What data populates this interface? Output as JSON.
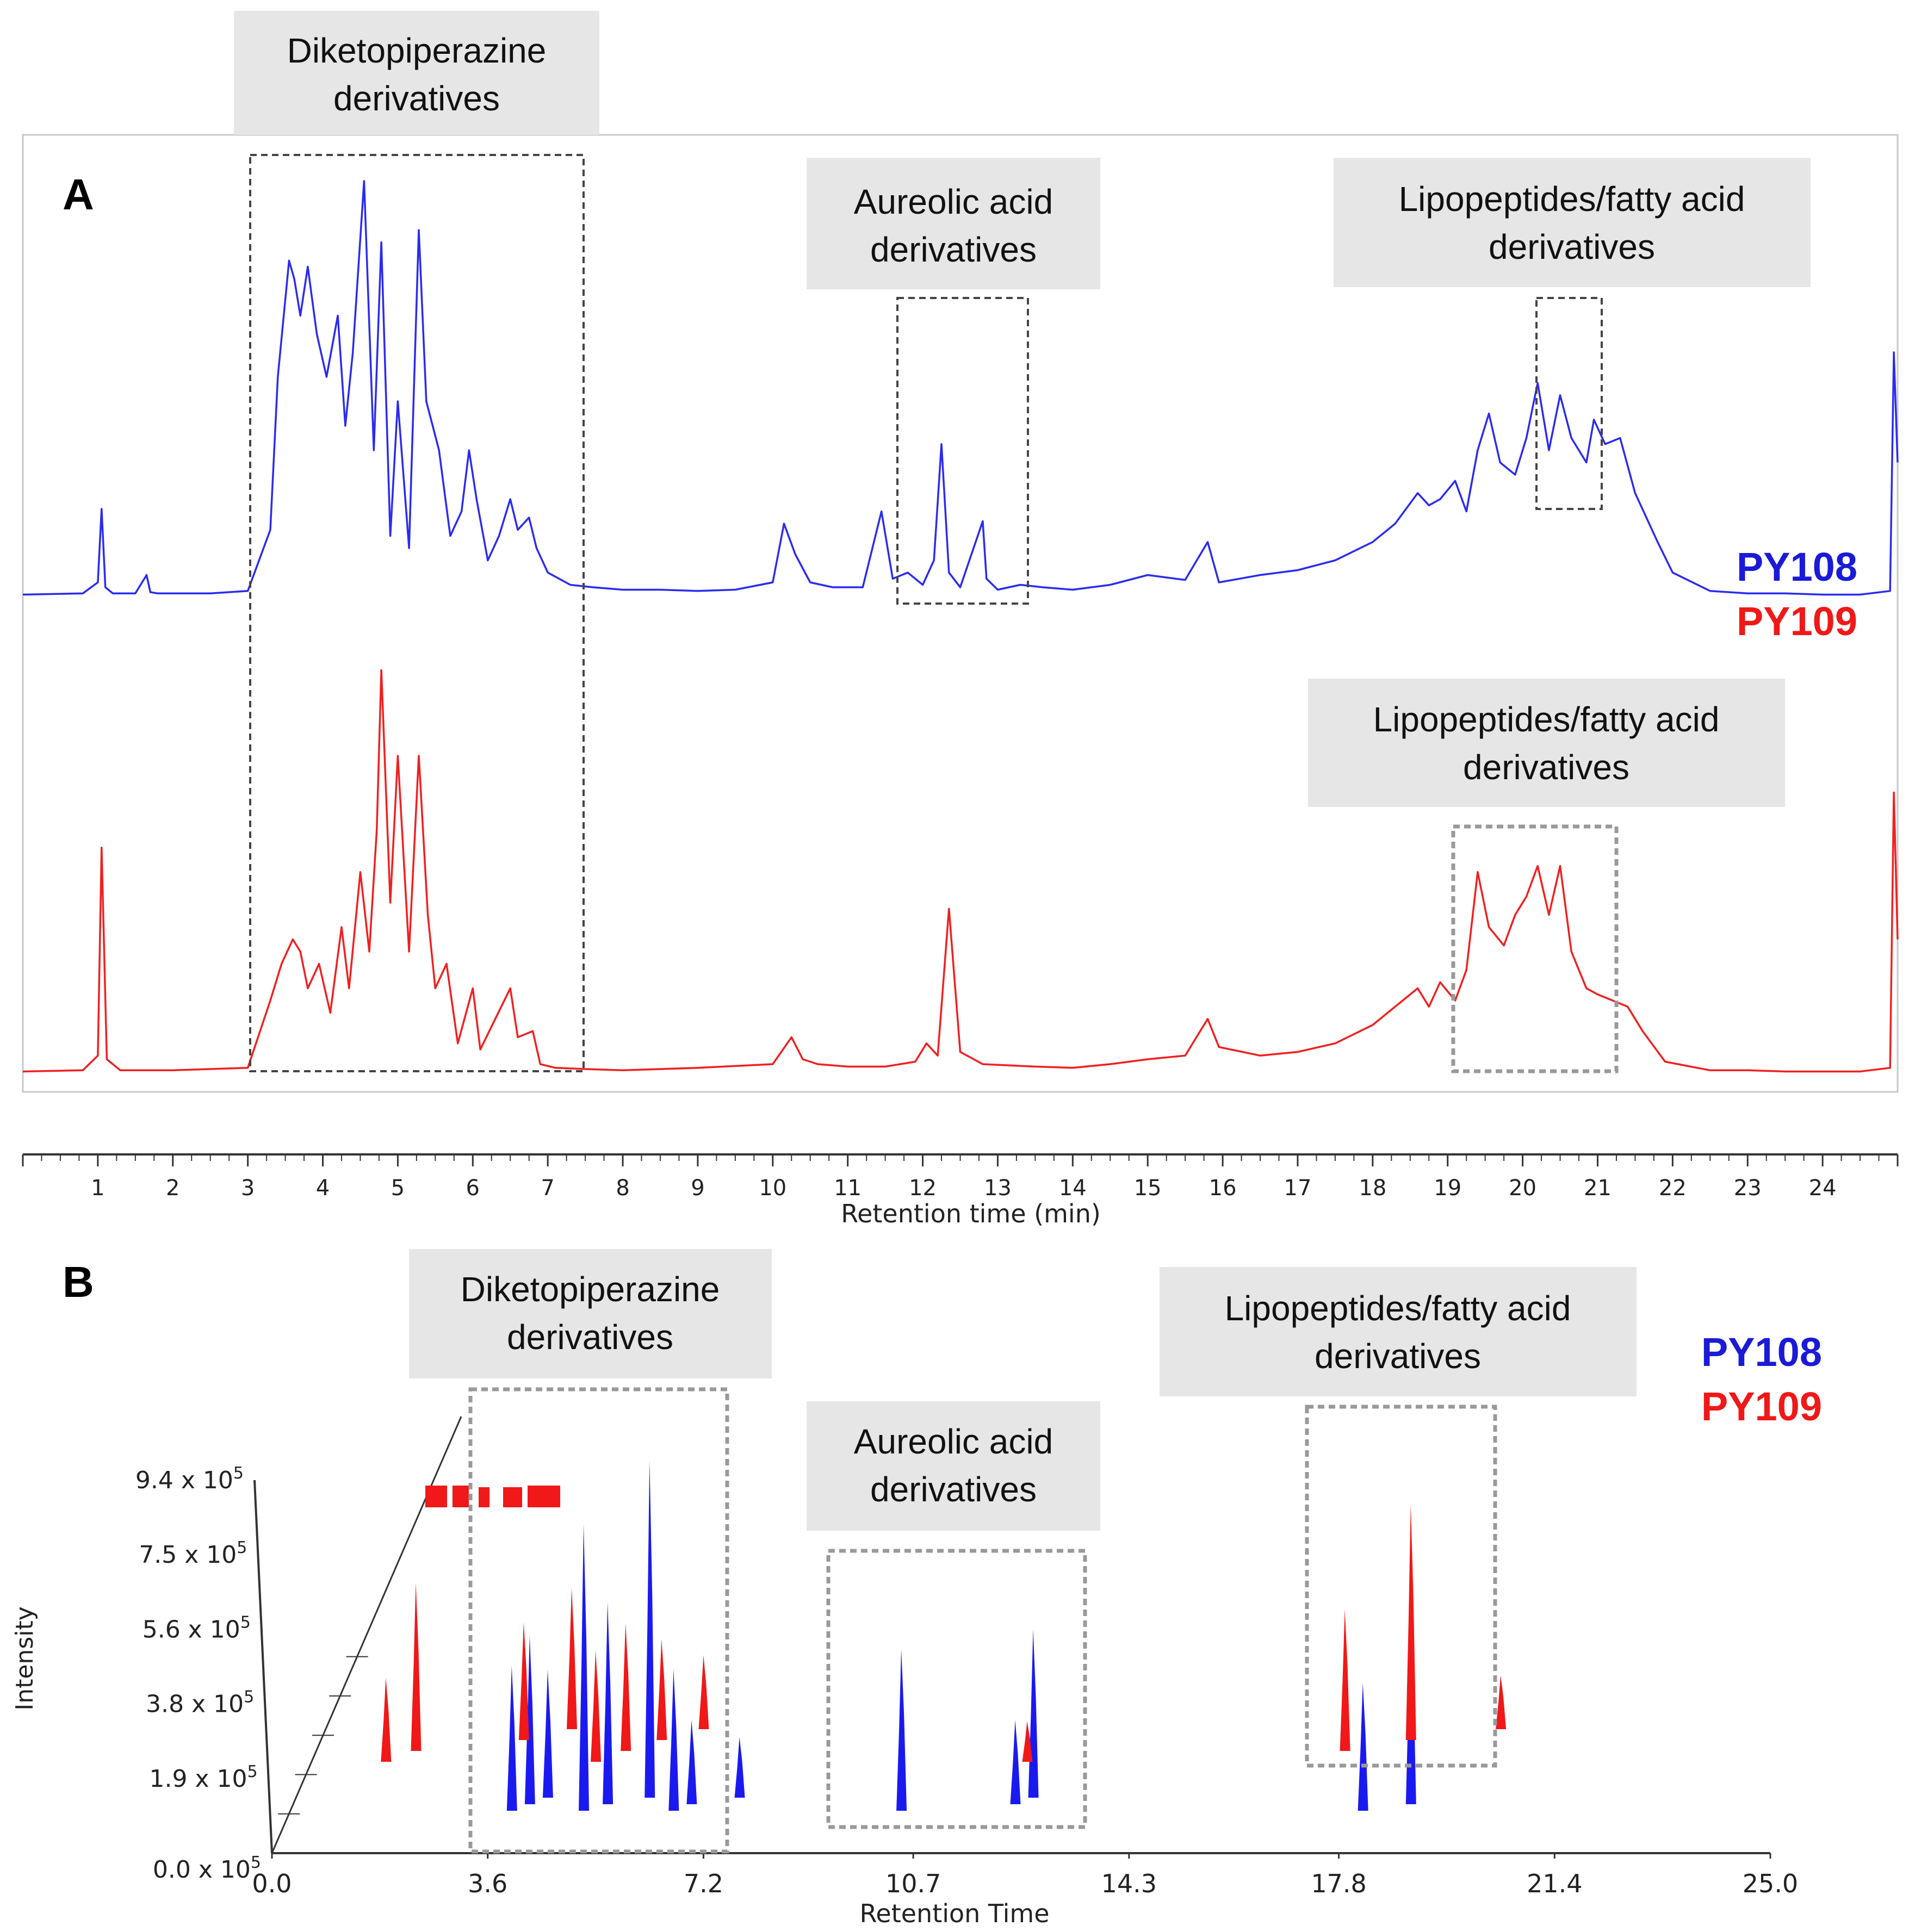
{
  "chart_data": [
    {
      "panel": "A",
      "type": "line",
      "xlabel": "Retention time (min)",
      "xlim": [
        0,
        25
      ],
      "xticks": [
        1,
        2,
        3,
        4,
        5,
        6,
        7,
        8,
        9,
        10,
        11,
        12,
        13,
        14,
        15,
        16,
        17,
        18,
        19,
        20,
        21,
        22,
        23,
        24
      ],
      "series": [
        {
          "name": "PY108",
          "color": "#2b2bf0",
          "x": [
            0,
            0.8,
            1.0,
            1.05,
            1.1,
            1.2,
            1.5,
            1.65,
            1.7,
            1.8,
            2.5,
            3.0,
            3.3,
            3.4,
            3.55,
            3.62,
            3.7,
            3.8,
            3.92,
            4.05,
            4.2,
            4.3,
            4.4,
            4.55,
            4.68,
            4.78,
            4.9,
            5.0,
            5.15,
            5.28,
            5.38,
            5.55,
            5.7,
            5.85,
            5.95,
            6.05,
            6.2,
            6.35,
            6.5,
            6.6,
            6.75,
            6.85,
            7.0,
            7.3,
            7.6,
            8.0,
            8.5,
            9.0,
            9.5,
            10.0,
            10.15,
            10.3,
            10.5,
            10.8,
            11.2,
            11.45,
            11.6,
            11.8,
            12.0,
            12.15,
            12.25,
            12.35,
            12.5,
            12.8,
            12.85,
            13.0,
            13.3,
            13.6,
            14.0,
            14.5,
            15.0,
            15.5,
            15.8,
            15.95,
            16.5,
            17.0,
            17.5,
            18.0,
            18.3,
            18.6,
            18.75,
            18.9,
            19.1,
            19.25,
            19.4,
            19.55,
            19.7,
            19.9,
            20.05,
            20.2,
            20.35,
            20.5,
            20.65,
            20.85,
            20.95,
            21.1,
            21.3,
            21.5,
            21.8,
            22.0,
            22.5,
            23.0,
            23.5,
            24.0,
            24.5,
            24.9,
            24.95,
            25.0
          ],
          "y": [
            2,
            3,
            12,
            72,
            8,
            3,
            3,
            18,
            4,
            3,
            3,
            5,
            55,
            180,
            275,
            260,
            230,
            270,
            215,
            180,
            230,
            140,
            200,
            340,
            120,
            290,
            50,
            160,
            40,
            300,
            160,
            120,
            50,
            70,
            120,
            80,
            30,
            50,
            80,
            55,
            65,
            40,
            20,
            10,
            8,
            6,
            6,
            5,
            6,
            12,
            60,
            35,
            12,
            8,
            8,
            70,
            15,
            20,
            10,
            30,
            125,
            20,
            8,
            62,
            15,
            6,
            10,
            8,
            6,
            10,
            18,
            14,
            45,
            12,
            18,
            22,
            30,
            45,
            60,
            85,
            75,
            80,
            95,
            70,
            120,
            150,
            110,
            100,
            130,
            175,
            120,
            165,
            130,
            110,
            145,
            125,
            130,
            85,
            45,
            20,
            5,
            3,
            3,
            2,
            2,
            5,
            200,
            110
          ]
        },
        {
          "name": "PY109",
          "color": "#f02020",
          "x": [
            0,
            0.8,
            1.0,
            1.05,
            1.12,
            1.3,
            2.0,
            2.5,
            3.0,
            3.3,
            3.45,
            3.6,
            3.7,
            3.8,
            3.95,
            4.1,
            4.25,
            4.35,
            4.5,
            4.62,
            4.72,
            4.78,
            4.9,
            5.0,
            5.15,
            5.28,
            5.4,
            5.5,
            5.65,
            5.8,
            6.0,
            6.1,
            6.3,
            6.5,
            6.6,
            6.8,
            6.9,
            7.1,
            7.5,
            8.0,
            9.0,
            10.0,
            10.25,
            10.4,
            10.6,
            11.0,
            11.5,
            11.9,
            12.05,
            12.2,
            12.35,
            12.5,
            12.8,
            13.5,
            14.0,
            14.5,
            15.0,
            15.5,
            15.8,
            15.95,
            16.5,
            17.0,
            17.5,
            18.0,
            18.4,
            18.6,
            18.75,
            18.9,
            19.1,
            19.25,
            19.4,
            19.55,
            19.75,
            19.9,
            20.05,
            20.2,
            20.35,
            20.5,
            20.65,
            20.85,
            21.0,
            21.2,
            21.4,
            21.6,
            21.9,
            22.5,
            23.0,
            23.5,
            24.0,
            24.5,
            24.9,
            24.95,
            25.0
          ],
          "y": [
            2,
            3,
            15,
            185,
            12,
            3,
            3,
            4,
            5,
            60,
            90,
            110,
            100,
            70,
            90,
            50,
            120,
            70,
            165,
            100,
            200,
            330,
            140,
            260,
            100,
            260,
            130,
            70,
            90,
            25,
            70,
            20,
            45,
            70,
            30,
            35,
            8,
            5,
            4,
            3,
            5,
            8,
            30,
            12,
            8,
            6,
            6,
            10,
            25,
            15,
            135,
            18,
            8,
            6,
            5,
            8,
            12,
            15,
            45,
            22,
            15,
            18,
            25,
            40,
            60,
            70,
            55,
            75,
            60,
            85,
            165,
            120,
            105,
            130,
            145,
            170,
            130,
            170,
            100,
            70,
            65,
            60,
            55,
            35,
            10,
            3,
            3,
            2,
            2,
            2,
            5,
            230,
            110
          ]
        }
      ],
      "annotations": [
        {
          "label": "Diketopiperazine derivatives",
          "x_range": [
            3.0,
            7.5
          ],
          "traces": "both"
        },
        {
          "label": "Aureolic acid derivatives",
          "x_range": [
            11.6,
            13.3
          ],
          "traces": "PY108"
        },
        {
          "label": "Lipopeptides/fatty acid derivatives",
          "x_range": [
            20.1,
            21.0
          ],
          "traces": "PY108"
        },
        {
          "label": "Lipopeptides/fatty acid derivatives",
          "x_range": [
            19.0,
            21.2
          ],
          "traces": "PY109"
        }
      ]
    },
    {
      "panel": "B",
      "type": "bar",
      "subtype": "3d-chromatogram",
      "xlabel": "Retention Time",
      "ylabel": "Intensity",
      "xticks": [
        "0.0",
        "3.6",
        "7.2",
        "10.7",
        "14.3",
        "17.8",
        "21.4",
        "25.0"
      ],
      "yticks": [
        "0.0 x 10",
        "1.9 x 10",
        "3.8 x 10",
        "5.6 x 10",
        "7.5 x 10",
        "9.4 x 10"
      ],
      "ytick_exponent": "5",
      "xlim": [
        0,
        25
      ],
      "ylim": [
        0,
        940000
      ],
      "series": [
        {
          "name": "PY108",
          "color": "#1a1af0",
          "peaks": [
            {
              "x": 4.0,
              "y": 430000
            },
            {
              "x": 4.3,
              "y": 500000
            },
            {
              "x": 4.6,
              "y": 380000
            },
            {
              "x": 5.2,
              "y": 850000
            },
            {
              "x": 5.6,
              "y": 600000
            },
            {
              "x": 6.3,
              "y": 1000000
            },
            {
              "x": 6.7,
              "y": 420000
            },
            {
              "x": 7.0,
              "y": 250000
            },
            {
              "x": 7.8,
              "y": 180000
            },
            {
              "x": 10.5,
              "y": 480000
            },
            {
              "x": 12.4,
              "y": 250000
            },
            {
              "x": 12.7,
              "y": 500000
            },
            {
              "x": 18.2,
              "y": 380000
            },
            {
              "x": 19.0,
              "y": 620000
            }
          ]
        },
        {
          "name": "PY109",
          "color": "#f01818",
          "peaks": [
            {
              "x": 1.9,
              "y": 250000
            },
            {
              "x": 2.4,
              "y": 500000
            },
            {
              "x": 4.2,
              "y": 350000
            },
            {
              "x": 5.0,
              "y": 420000
            },
            {
              "x": 5.4,
              "y": 330000
            },
            {
              "x": 5.9,
              "y": 380000
            },
            {
              "x": 6.5,
              "y": 300000
            },
            {
              "x": 7.2,
              "y": 220000
            },
            {
              "x": 12.6,
              "y": 120000
            },
            {
              "x": 17.9,
              "y": 420000
            },
            {
              "x": 19.0,
              "y": 700000
            },
            {
              "x": 20.5,
              "y": 160000
            }
          ]
        }
      ],
      "annotations": [
        {
          "label": "Diketopiperazine derivatives",
          "x_range": [
            3.8,
            7.4
          ]
        },
        {
          "label": "Aureolic acid derivatives",
          "x_range": [
            9.3,
            13.1
          ]
        },
        {
          "label": "Lipopeptides/fatty acid derivatives",
          "x_range": [
            17.2,
            19.8
          ]
        }
      ]
    }
  ],
  "panels": {
    "a": {
      "letter": "A",
      "boxes": [
        "Diketopiperazine",
        "derivatives",
        "Aureolic acid",
        "derivatives",
        "Lipopeptides/fatty acid",
        "derivatives",
        "Lipopeptides/fatty acid",
        "derivatives"
      ],
      "legend": [
        "PY108",
        "PY109"
      ]
    },
    "b": {
      "letter": "B",
      "boxes": [
        "Diketopiperazine",
        "derivatives",
        "Aureolic acid",
        "derivatives",
        "Lipopeptides/fatty acid",
        "derivatives"
      ],
      "legend": [
        "PY108",
        "PY109"
      ]
    }
  }
}
